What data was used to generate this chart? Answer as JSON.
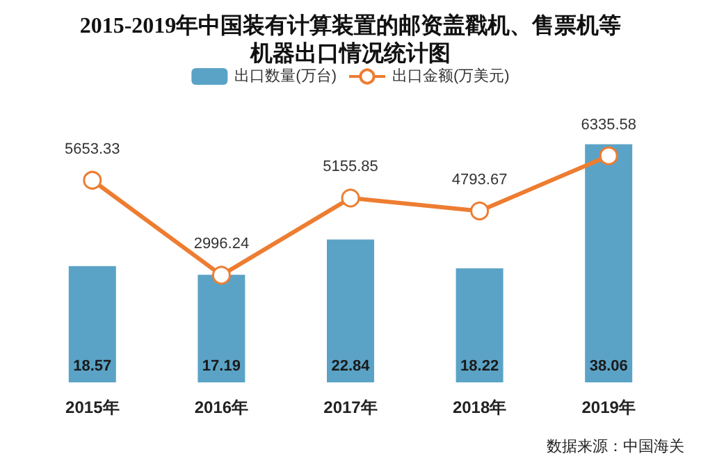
{
  "chart_data": {
    "type": "bar",
    "title": "2015-2019年中国装有计算装置的邮资盖戳机、售票机等机器出口情况统计图",
    "categories": [
      "2015年",
      "2016年",
      "2017年",
      "2018年",
      "2019年"
    ],
    "series": [
      {
        "name": "出口数量(万台)",
        "color": "#5ba3c6",
        "values": [
          18.57,
          17.19,
          22.84,
          18.22,
          38.06
        ]
      },
      {
        "name": "出口金额(万美元)",
        "type": "line",
        "axis": "y2",
        "color": "#ed7d31",
        "values": [
          5653.33,
          2996.24,
          5155.85,
          4793.67,
          6335.58
        ]
      }
    ],
    "data_labels": true,
    "legend": "top",
    "tick_labels": "x",
    "marker": "circle",
    "annotations": [
      "数据来源：中国海关"
    ]
  }
}
